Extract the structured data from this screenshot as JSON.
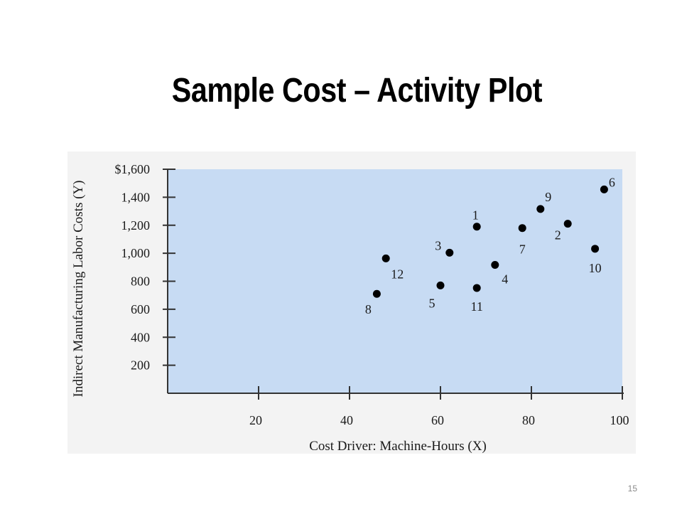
{
  "slide": {
    "title": "Sample Cost – Activity Plot",
    "page_number": "15"
  },
  "colors": {
    "plot_background": "#c7dbf3",
    "figure_background": "#f3f3f3",
    "point": "#000000",
    "axis": "#333333"
  },
  "chart_data": {
    "type": "scatter",
    "title": "",
    "xlabel": "Cost Driver: Machine-Hours (X)",
    "ylabel": "Indirect Manufacturing Labor Costs (Y)",
    "xlim": [
      0,
      100
    ],
    "ylim": [
      0,
      1600
    ],
    "x_ticks": [
      20,
      40,
      60,
      80,
      100
    ],
    "x_tick_labels": [
      "20",
      "40",
      "60",
      "80",
      "100"
    ],
    "y_ticks": [
      200,
      400,
      600,
      800,
      1000,
      1200,
      1400,
      1600
    ],
    "y_tick_labels": [
      "200",
      "400",
      "600",
      "800",
      "1,000",
      "1,200",
      "1,400",
      "$1,600"
    ],
    "grid": false,
    "points": [
      {
        "label": "1",
        "x": 68,
        "y": 1190
      },
      {
        "label": "2",
        "x": 88,
        "y": 1211
      },
      {
        "label": "3",
        "x": 62,
        "y": 1004
      },
      {
        "label": "4",
        "x": 72,
        "y": 917
      },
      {
        "label": "5",
        "x": 60,
        "y": 770
      },
      {
        "label": "6",
        "x": 96,
        "y": 1456
      },
      {
        "label": "7",
        "x": 78,
        "y": 1180
      },
      {
        "label": "8",
        "x": 46,
        "y": 710
      },
      {
        "label": "9",
        "x": 82,
        "y": 1316
      },
      {
        "label": "10",
        "x": 94,
        "y": 1032
      },
      {
        "label": "11",
        "x": 68,
        "y": 752
      },
      {
        "label": "12",
        "x": 48,
        "y": 963
      }
    ]
  }
}
